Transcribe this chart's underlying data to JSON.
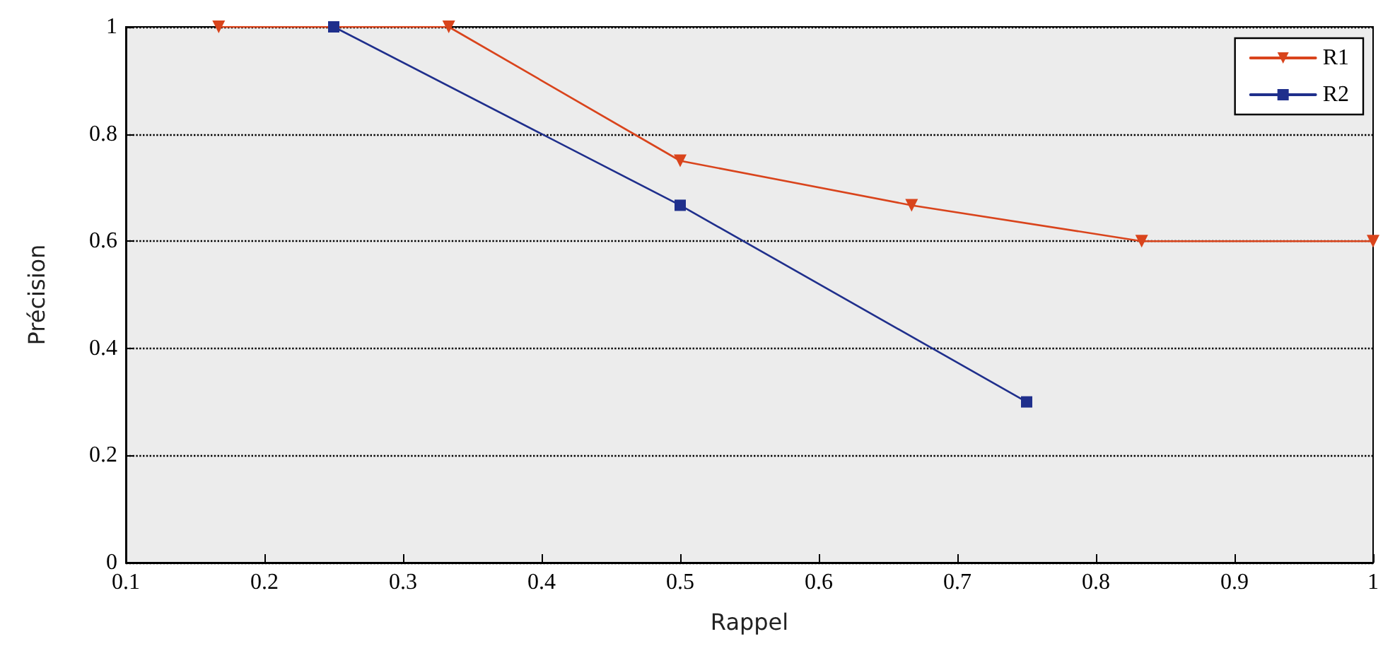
{
  "chart_data": {
    "type": "line",
    "xlabel": "Rappel",
    "ylabel": "Précision",
    "xlim": [
      0.1,
      1
    ],
    "xticks": [
      0.1,
      0.2,
      0.3,
      0.4,
      0.5,
      0.6,
      0.7,
      0.8,
      0.9,
      1
    ],
    "ylim": [
      0,
      1
    ],
    "yticks": [
      0,
      0.2,
      0.4,
      0.6,
      0.8,
      1
    ],
    "grid": "y",
    "legend": "top right",
    "line_style": "solid",
    "series": [
      {
        "name": "R1",
        "color": "#d9441c",
        "marker": "triangle",
        "x": [
          0.167,
          0.333,
          0.5,
          0.667,
          0.833,
          1
        ],
        "values": [
          1,
          1,
          0.75,
          0.667,
          0.6,
          0.6
        ]
      },
      {
        "name": "R2",
        "color": "#1f2f8c",
        "marker": "square",
        "x": [
          0.25,
          0.5,
          0.75
        ],
        "values": [
          1,
          0.667,
          0.3
        ]
      }
    ]
  }
}
